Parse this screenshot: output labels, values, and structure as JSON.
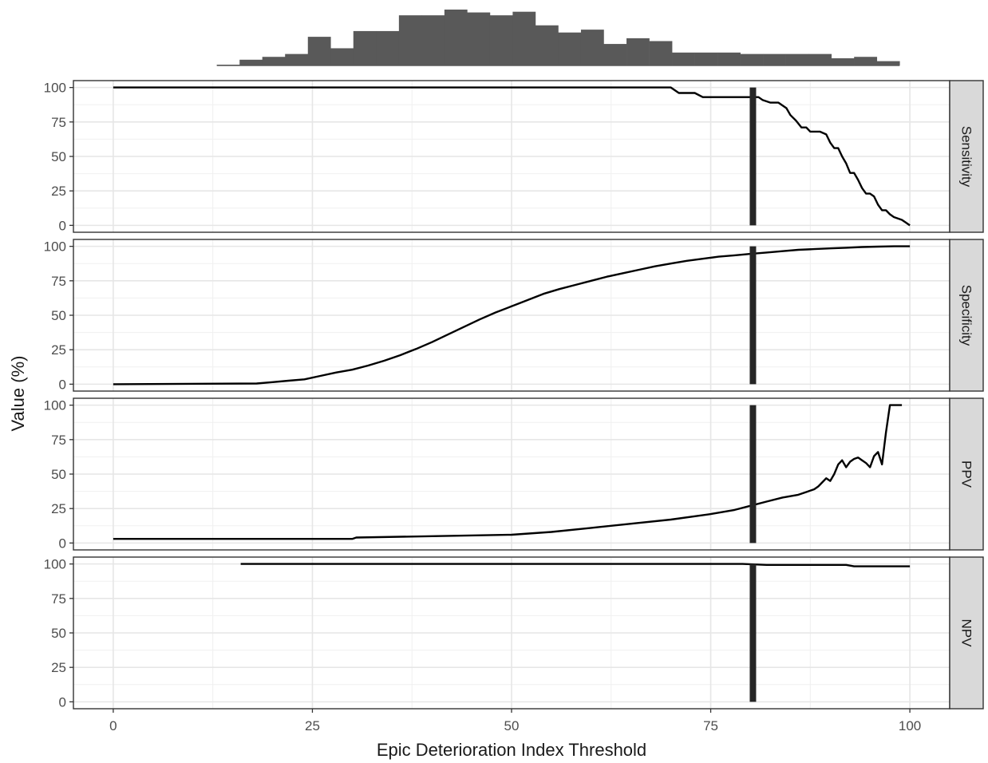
{
  "chart_data": {
    "type": "line",
    "title": "",
    "xlabel": "Epic Deterioration Index Threshold",
    "ylabel": "Value (%)",
    "xlim": [
      -5,
      105
    ],
    "ylim": [
      -5,
      105
    ],
    "x_ticks": [
      0,
      25,
      50,
      75,
      100
    ],
    "y_ticks": [
      0,
      25,
      50,
      75,
      100
    ],
    "grid": true,
    "vertical_marker": {
      "x": 80.3,
      "color": "#262626"
    },
    "histogram": {
      "type": "bar",
      "description_values": "relative frequency of Epic Deterioration Index scores",
      "bin_width": 2.857,
      "bin_starts": [
        13,
        15.86,
        18.71,
        21.57,
        24.43,
        27.29,
        30.14,
        33,
        35.86,
        38.71,
        41.57,
        44.43,
        47.29,
        50.14,
        53,
        55.86,
        58.71,
        61.57,
        64.43,
        67.29,
        70.14,
        73,
        75.86,
        78.71,
        81.57,
        84.43,
        87.29,
        90.14,
        93,
        95.86
      ],
      "values": [
        1,
        8,
        12,
        16,
        40,
        24,
        48,
        48,
        70,
        70,
        78,
        74,
        70,
        75,
        56,
        46,
        50,
        30,
        38,
        34,
        18,
        18,
        18,
        16,
        16,
        16,
        16,
        10,
        12,
        6
      ],
      "color": "#595959"
    },
    "panels": [
      {
        "label": "Sensitivity",
        "x": [
          0,
          70,
          71,
          73,
          74,
          81,
          81.5,
          82.5,
          83.5,
          84.5,
          85,
          85.7,
          86.4,
          87,
          87.5,
          88,
          88.7,
          89.5,
          90,
          90.5,
          91,
          91.5,
          92,
          92.5,
          93,
          93.5,
          94,
          94.5,
          95,
          95.5,
          96,
          96.5,
          97,
          97.5,
          98,
          98.5,
          99,
          99.5,
          100
        ],
        "y": [
          100,
          100,
          96,
          96,
          93,
          93,
          91,
          89,
          89,
          85,
          80,
          76,
          71,
          71,
          68,
          68,
          68,
          66,
          60,
          56,
          56,
          50,
          45,
          38,
          38,
          33,
          27,
          23,
          23,
          21,
          15,
          11,
          11,
          8,
          6,
          5,
          4,
          2,
          0
        ]
      },
      {
        "label": "Specificity",
        "x": [
          0,
          18,
          20,
          22,
          24,
          26,
          28,
          30,
          32,
          34,
          36,
          38,
          40,
          42,
          44,
          46,
          48,
          50,
          52,
          54,
          56,
          58,
          60,
          62,
          64,
          66,
          68,
          70,
          72,
          74,
          76,
          78,
          80,
          82,
          84,
          86,
          88,
          90,
          92,
          94,
          96,
          98,
          100
        ],
        "y": [
          0,
          0.5,
          1.5,
          2.5,
          3.5,
          6,
          8.5,
          10.5,
          13.5,
          17,
          21,
          25.5,
          30.5,
          36,
          41.5,
          47,
          52,
          56.5,
          61,
          65.5,
          69,
          72,
          75,
          78,
          80.5,
          83,
          85.5,
          87.5,
          89.5,
          91,
          92.5,
          93.5,
          94.5,
          95.5,
          96.5,
          97.5,
          98,
          98.5,
          99,
          99.5,
          99.8,
          100,
          100
        ]
      },
      {
        "label": "PPV",
        "x": [
          0,
          30,
          30.5,
          50,
          55,
          60,
          65,
          70,
          75,
          78,
          80,
          82,
          84,
          86,
          87,
          88,
          88.5,
          89,
          89.5,
          90,
          90.5,
          91,
          91.5,
          92,
          92.5,
          93,
          93.5,
          94,
          94.5,
          95,
          95.5,
          96,
          96.5,
          97,
          97.5,
          98,
          99
        ],
        "y": [
          3,
          3,
          4,
          6,
          8,
          11,
          14,
          17,
          21,
          24,
          27,
          30,
          33,
          35,
          37,
          39,
          41,
          44,
          47,
          45,
          50,
          57,
          60,
          55,
          59,
          61,
          62,
          60,
          58,
          55,
          63,
          66,
          57,
          80,
          100,
          100,
          100
        ]
      },
      {
        "label": "NPV",
        "x": [
          16,
          79,
          82,
          92,
          93,
          100
        ],
        "y": [
          100,
          100,
          99.3,
          99.3,
          98.3,
          98.3
        ]
      }
    ]
  }
}
